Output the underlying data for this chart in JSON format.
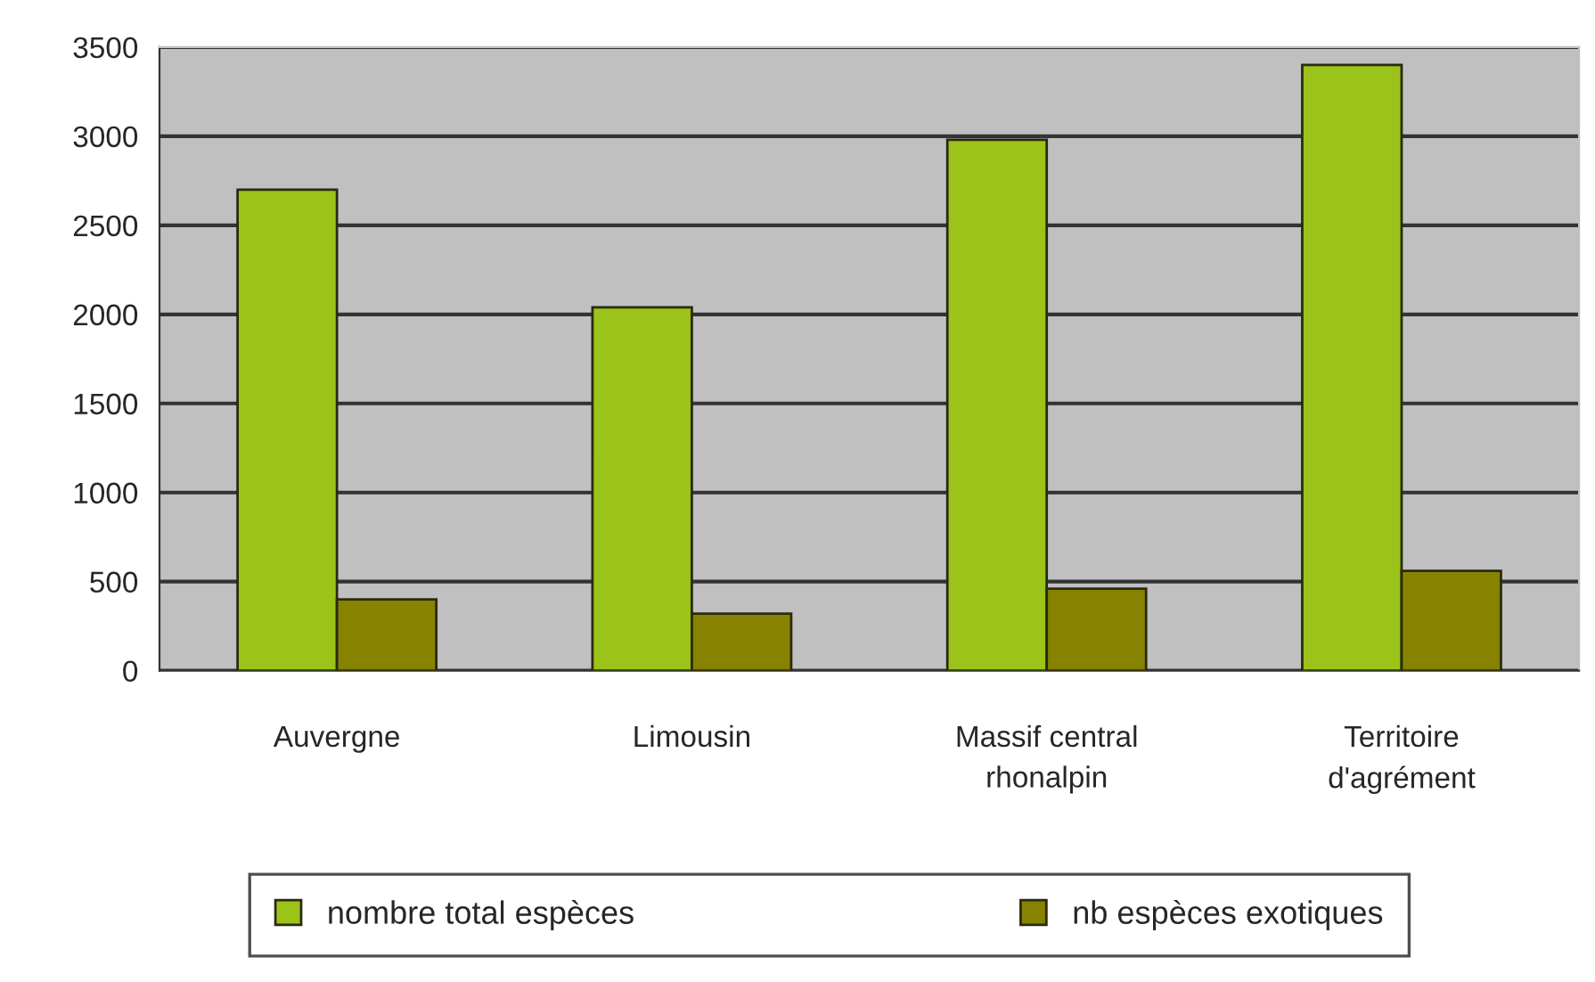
{
  "chart_data": {
    "type": "bar",
    "categories": [
      "Auvergne",
      "Limousin",
      "Massif central\nrhonalpin",
      "Territoire\nd'agrément"
    ],
    "series": [
      {
        "name": "nombre total espèces",
        "color": "#9bc31a",
        "values": [
          2700,
          2040,
          2980,
          3400
        ]
      },
      {
        "name": "nb espèces exotiques",
        "color": "#878200",
        "values": [
          400,
          320,
          460,
          560
        ]
      }
    ],
    "ylim": [
      0,
      3500
    ],
    "yticks": [
      0,
      500,
      1000,
      1500,
      2000,
      2500,
      3000,
      3500
    ],
    "grid": "y",
    "legend": "bottom"
  }
}
